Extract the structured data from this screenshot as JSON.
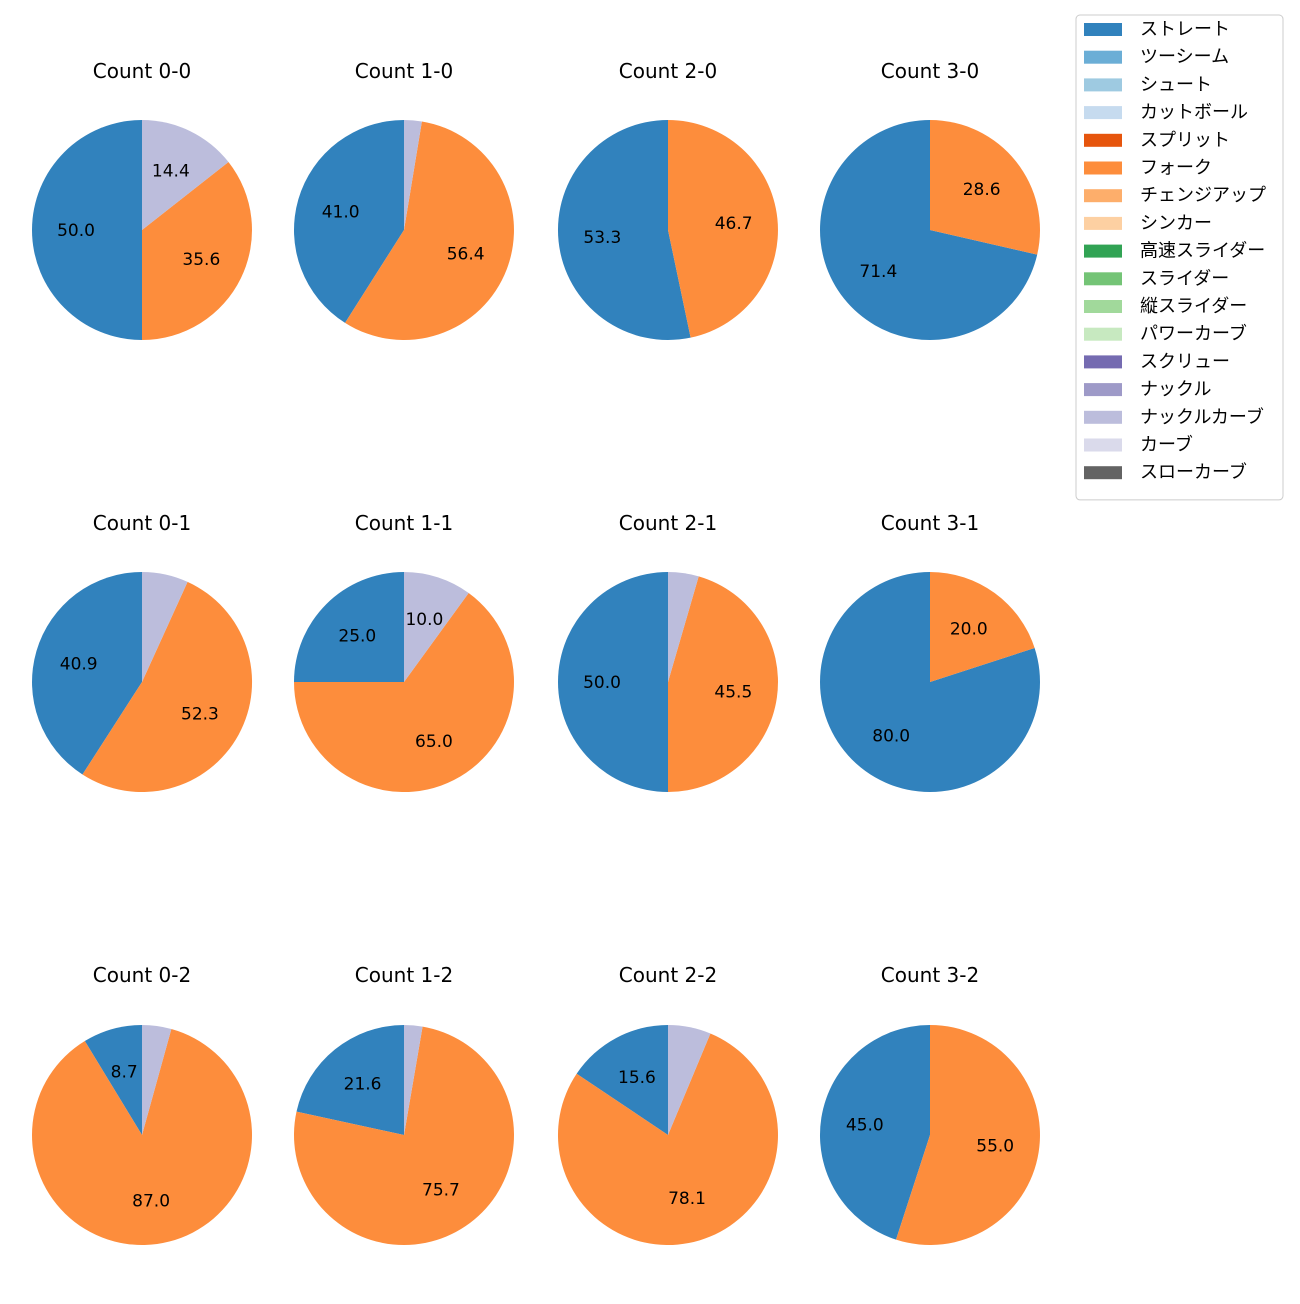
{
  "chart_data": {
    "type": "pie",
    "legend": {
      "position": "top-right",
      "entries": [
        {
          "label": "ストレート",
          "color": "#3182bd"
        },
        {
          "label": "ツーシーム",
          "color": "#6baed6"
        },
        {
          "label": "シュート",
          "color": "#9ecae1"
        },
        {
          "label": "カットボール",
          "color": "#c6dbef"
        },
        {
          "label": "スプリット",
          "color": "#e6550d"
        },
        {
          "label": "フォーク",
          "color": "#fd8d3c"
        },
        {
          "label": "チェンジアップ",
          "color": "#fdae6b"
        },
        {
          "label": "シンカー",
          "color": "#fdd0a2"
        },
        {
          "label": "高速スライダー",
          "color": "#31a354"
        },
        {
          "label": "スライダー",
          "color": "#74c476"
        },
        {
          "label": "縦スライダー",
          "color": "#a1d99b"
        },
        {
          "label": "パワーカーブ",
          "color": "#c7e9c0"
        },
        {
          "label": "スクリュー",
          "color": "#756bb1"
        },
        {
          "label": "ナックル",
          "color": "#9e9ac8"
        },
        {
          "label": "ナックルカーブ",
          "color": "#bcbddc"
        },
        {
          "label": "カーブ",
          "color": "#dadaeb"
        },
        {
          "label": "スローカーブ",
          "color": "#636363"
        }
      ]
    },
    "charts": [
      {
        "title": "Count 0-0",
        "slices": [
          {
            "name": "ストレート",
            "value": 50.0,
            "label": "50.0"
          },
          {
            "name": "フォーク",
            "value": 35.6,
            "label": "35.6"
          },
          {
            "name": "ナックルカーブ",
            "value": 14.4,
            "label": "14.4"
          }
        ]
      },
      {
        "title": "Count 1-0",
        "slices": [
          {
            "name": "ストレート",
            "value": 41.0,
            "label": "41.0"
          },
          {
            "name": "フォーク",
            "value": 56.4,
            "label": "56.4"
          },
          {
            "name": "ナックルカーブ",
            "value": 2.6,
            "label": ""
          }
        ]
      },
      {
        "title": "Count 2-0",
        "slices": [
          {
            "name": "ストレート",
            "value": 53.3,
            "label": "53.3"
          },
          {
            "name": "フォーク",
            "value": 46.7,
            "label": "46.7"
          }
        ]
      },
      {
        "title": "Count 3-0",
        "slices": [
          {
            "name": "ストレート",
            "value": 71.4,
            "label": "71.4"
          },
          {
            "name": "フォーク",
            "value": 28.6,
            "label": "28.6"
          }
        ]
      },
      {
        "title": "Count 0-1",
        "slices": [
          {
            "name": "ストレート",
            "value": 40.9,
            "label": "40.9"
          },
          {
            "name": "フォーク",
            "value": 52.3,
            "label": "52.3"
          },
          {
            "name": "ナックルカーブ",
            "value": 6.8,
            "label": ""
          }
        ]
      },
      {
        "title": "Count 1-1",
        "slices": [
          {
            "name": "ストレート",
            "value": 25.0,
            "label": "25.0"
          },
          {
            "name": "フォーク",
            "value": 65.0,
            "label": "65.0"
          },
          {
            "name": "ナックルカーブ",
            "value": 10.0,
            "label": "10.0"
          }
        ]
      },
      {
        "title": "Count 2-1",
        "slices": [
          {
            "name": "ストレート",
            "value": 50.0,
            "label": "50.0"
          },
          {
            "name": "フォーク",
            "value": 45.5,
            "label": "45.5"
          },
          {
            "name": "ナックルカーブ",
            "value": 4.5,
            "label": ""
          }
        ]
      },
      {
        "title": "Count 3-1",
        "slices": [
          {
            "name": "ストレート",
            "value": 80.0,
            "label": "80.0"
          },
          {
            "name": "フォーク",
            "value": 20.0,
            "label": "20.0"
          }
        ]
      },
      {
        "title": "Count 0-2",
        "slices": [
          {
            "name": "ストレート",
            "value": 8.7,
            "label": "8.7"
          },
          {
            "name": "フォーク",
            "value": 87.0,
            "label": "87.0"
          },
          {
            "name": "ナックルカーブ",
            "value": 4.3,
            "label": ""
          }
        ]
      },
      {
        "title": "Count 1-2",
        "slices": [
          {
            "name": "ストレート",
            "value": 21.6,
            "label": "21.6"
          },
          {
            "name": "フォーク",
            "value": 75.7,
            "label": "75.7"
          },
          {
            "name": "ナックルカーブ",
            "value": 2.7,
            "label": ""
          }
        ]
      },
      {
        "title": "Count 2-2",
        "slices": [
          {
            "name": "ストレート",
            "value": 15.6,
            "label": "15.6"
          },
          {
            "name": "フォーク",
            "value": 78.1,
            "label": "78.1"
          },
          {
            "name": "ナックルカーブ",
            "value": 6.3,
            "label": ""
          }
        ]
      },
      {
        "title": "Count 3-2",
        "slices": [
          {
            "name": "ストレート",
            "value": 45.0,
            "label": "45.0"
          },
          {
            "name": "フォーク",
            "value": 55.0,
            "label": "55.0"
          }
        ]
      }
    ]
  }
}
